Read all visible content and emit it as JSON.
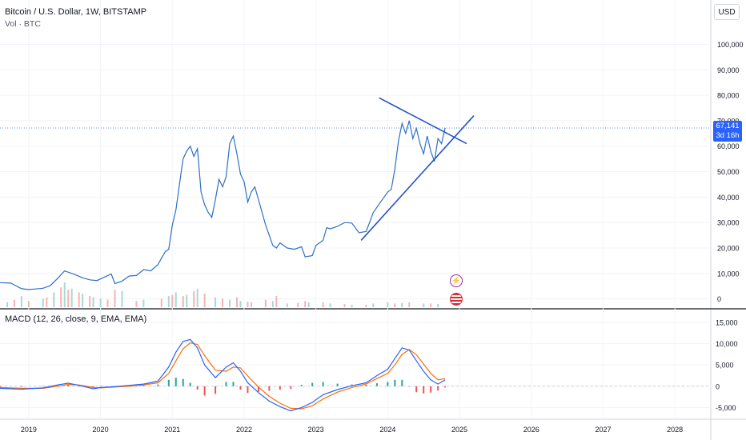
{
  "header": {
    "title": "Bitcoin / U.S. Dollar, 1W, BITSTAMP",
    "volume_label": "Vol · BTC",
    "currency_button": "USD"
  },
  "price_tag": {
    "price": "67,141",
    "countdown": "3d 16h",
    "color": "#2962ff"
  },
  "macd_legend": "MACD (12, 26, close, 9, EMA, EMA)",
  "colors": {
    "price_line": "#2f6fc6",
    "trendline": "#2453c7",
    "macd": "#2962ff",
    "signal": "#ff6d00",
    "hist_up": "#26a69a",
    "hist_down": "#ef5350",
    "vol_up": "#a9d8d3",
    "vol_down": "#f4b4b2"
  },
  "icons": [
    "flash-event-icon",
    "us-flag-event-icon"
  ],
  "chart_data": [
    {
      "type": "line",
      "title": "Bitcoin / U.S. Dollar, 1W, BITSTAMP",
      "x_ticks": [
        "2019",
        "2020",
        "2021",
        "2022",
        "2023",
        "2024",
        "2025",
        "2026",
        "2027",
        "2028"
      ],
      "y_ticks": [
        "0",
        "10,000",
        "20,000",
        "30,000",
        "40,000",
        "50,000",
        "60,000",
        "70,000",
        "80,000",
        "90,000",
        "100,000"
      ],
      "ylim": [
        -2000,
        108000
      ],
      "xlim": [
        2018.6,
        2028.5
      ],
      "series": [
        {
          "x": [
            2018.6,
            2018.75,
            2018.9,
            2019.0,
            2019.1,
            2019.2,
            2019.3,
            2019.4,
            2019.5,
            2019.55,
            2019.65,
            2019.75,
            2019.85,
            2019.95,
            2020.05,
            2020.15,
            2020.2,
            2020.3,
            2020.4,
            2020.5,
            2020.6,
            2020.7,
            2020.8,
            2020.85,
            2020.9,
            2020.95,
            2021.0,
            2021.05,
            2021.1,
            2021.15,
            2021.2,
            2021.25,
            2021.3,
            2021.35,
            2021.4,
            2021.45,
            2021.5,
            2021.55,
            2021.6,
            2021.65,
            2021.7,
            2021.75,
            2021.8,
            2021.85,
            2021.9,
            2021.95,
            2022.0,
            2022.05,
            2022.1,
            2022.15,
            2022.2,
            2022.3,
            2022.4,
            2022.45,
            2022.5,
            2022.6,
            2022.7,
            2022.8,
            2022.85,
            2022.95,
            2023.0,
            2023.1,
            2023.15,
            2023.2,
            2023.3,
            2023.4,
            2023.5,
            2023.6,
            2023.7,
            2023.8,
            2023.9,
            2024.0,
            2024.05,
            2024.1,
            2024.15,
            2024.2,
            2024.25,
            2024.3,
            2024.35,
            2024.4,
            2024.45,
            2024.5,
            2024.55,
            2024.6,
            2024.65,
            2024.7,
            2024.75,
            2024.8
          ],
          "y": [
            6400,
            6200,
            4000,
            3700,
            3900,
            4200,
            5200,
            8000,
            11000,
            10500,
            9500,
            8300,
            7500,
            7200,
            8500,
            9800,
            6000,
            7000,
            9000,
            9200,
            11500,
            11000,
            13500,
            16000,
            18500,
            19500,
            29000,
            35000,
            45000,
            55000,
            58000,
            60000,
            56000,
            59000,
            42000,
            37000,
            34000,
            32000,
            39000,
            47000,
            44000,
            48000,
            61000,
            64000,
            57000,
            49000,
            46000,
            38000,
            42000,
            44000,
            39000,
            29000,
            21000,
            20000,
            22000,
            20000,
            19500,
            20500,
            16500,
            17000,
            21000,
            23000,
            28000,
            27500,
            28500,
            30000,
            29800,
            26000,
            26500,
            34000,
            38000,
            42000,
            43000,
            51000,
            62000,
            69000,
            65000,
            70000,
            63000,
            67000,
            61000,
            57000,
            64000,
            58000,
            54000,
            63000,
            61000,
            67141
          ]
        }
      ],
      "volume": {
        "up_x": [
          2018.7,
          2018.9,
          2019.2,
          2019.35,
          2019.5,
          2019.6,
          2019.75,
          2019.9,
          2020.0,
          2020.3,
          2020.6,
          2020.95,
          2021.05,
          2021.2,
          2021.35,
          2021.6,
          2021.8,
          2021.95,
          2022.1,
          2022.4,
          2022.6,
          2022.9,
          2023.2,
          2023.5,
          2023.8,
          2024.0,
          2024.2,
          2024.5,
          2024.7
        ],
        "up": [
          4000,
          9000,
          7000,
          12000,
          20000,
          15000,
          11000,
          8000,
          7000,
          13000,
          6000,
          9000,
          12000,
          10000,
          15000,
          8000,
          6000,
          5000,
          4000,
          5000,
          3000,
          4000,
          3000,
          2000,
          3000,
          4000,
          3500,
          3000,
          2500
        ],
        "down_x": [
          2018.8,
          2019.0,
          2019.25,
          2019.45,
          2019.55,
          2019.7,
          2019.85,
          2020.1,
          2020.2,
          2020.5,
          2020.85,
          2021.0,
          2021.15,
          2021.3,
          2021.45,
          2021.7,
          2021.9,
          2022.05,
          2022.3,
          2022.45,
          2022.75,
          2022.85,
          2023.1,
          2023.4,
          2023.7,
          2024.1,
          2024.3,
          2024.6
        ],
        "down": [
          6000,
          5000,
          8000,
          16000,
          14000,
          12000,
          9000,
          6000,
          14000,
          5000,
          7000,
          10000,
          9000,
          13000,
          11000,
          7000,
          8000,
          4500,
          6000,
          9000,
          3500,
          5000,
          4000,
          2500,
          2000,
          3000,
          4000,
          3000
        ]
      },
      "annotations": [
        {
          "type": "trendline",
          "name": "upper-trendline",
          "from": [
            2023.88,
            79000
          ],
          "to": [
            2025.1,
            61000
          ]
        },
        {
          "type": "trendline",
          "name": "lower-trendline",
          "from": [
            2023.63,
            23000
          ],
          "to": [
            2025.2,
            72000
          ]
        }
      ]
    },
    {
      "type": "line",
      "title": "MACD (12, 26, close, 9, EMA, EMA)",
      "y_ticks": [
        "-5,000",
        "0",
        "5,000",
        "10,000",
        "15,000"
      ],
      "ylim": [
        -7000,
        16500
      ],
      "series_names": [
        "MACD",
        "Signal",
        "Histogram"
      ],
      "x": [
        2018.6,
        2018.9,
        2019.2,
        2019.4,
        2019.55,
        2019.7,
        2019.9,
        2020.0,
        2020.2,
        2020.4,
        2020.6,
        2020.8,
        2020.95,
        2021.05,
        2021.15,
        2021.25,
        2021.35,
        2021.45,
        2021.6,
        2021.75,
        2021.85,
        2021.95,
        2022.05,
        2022.2,
        2022.35,
        2022.5,
        2022.65,
        2022.8,
        2022.95,
        2023.1,
        2023.3,
        2023.5,
        2023.7,
        2023.85,
        2024.0,
        2024.1,
        2024.2,
        2024.3,
        2024.4,
        2024.5,
        2024.6,
        2024.7,
        2024.8
      ],
      "macd": [
        -500,
        -700,
        -400,
        300,
        700,
        200,
        -600,
        -300,
        -100,
        200,
        500,
        1200,
        4500,
        8000,
        10500,
        11000,
        9000,
        5000,
        2000,
        4500,
        5500,
        3500,
        800,
        -1500,
        -3500,
        -4800,
        -5800,
        -5000,
        -3800,
        -2000,
        -800,
        100,
        800,
        2500,
        4000,
        6500,
        9000,
        8500,
        6000,
        3500,
        1500,
        500,
        1500
      ],
      "signal": [
        -300,
        -500,
        -500,
        0,
        400,
        300,
        -300,
        -400,
        -200,
        0,
        300,
        800,
        3000,
        6000,
        8800,
        10200,
        9800,
        7200,
        3800,
        3500,
        4500,
        4300,
        2400,
        -200,
        -2400,
        -4000,
        -5200,
        -5300,
        -4600,
        -3000,
        -1400,
        -300,
        500,
        1800,
        3000,
        5000,
        7500,
        8600,
        7400,
        5200,
        3000,
        1500,
        1800
      ],
      "hist": [
        -200,
        -200,
        100,
        300,
        300,
        -100,
        -300,
        100,
        100,
        200,
        200,
        400,
        1500,
        2000,
        1700,
        800,
        -800,
        -2200,
        -1800,
        1000,
        1000,
        -800,
        -1600,
        -1300,
        -1100,
        -800,
        -600,
        300,
        800,
        1000,
        600,
        400,
        300,
        700,
        1000,
        1500,
        1500,
        -100,
        -1400,
        -1700,
        -1500,
        -1000,
        -300
      ]
    }
  ]
}
